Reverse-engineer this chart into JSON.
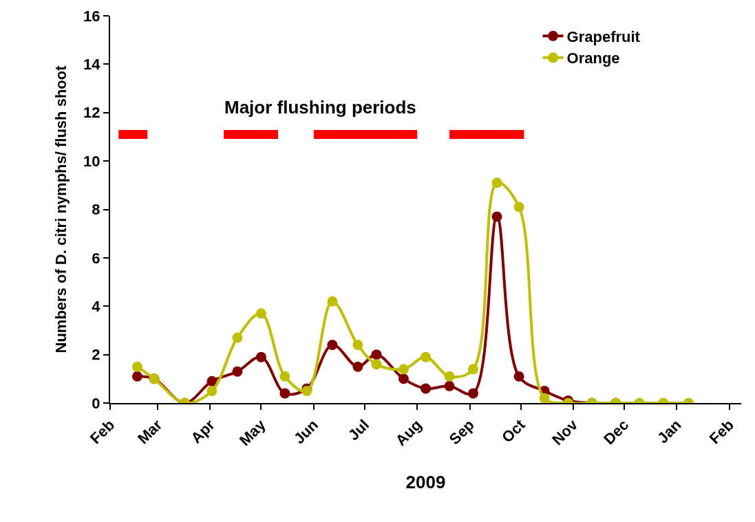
{
  "chart_data": {
    "type": "line",
    "xlabel": "2009",
    "ylabel": "Numbers of D. citri nymphs/ flush shoot",
    "series": [
      {
        "name": "Grapefruit",
        "color": "#7f0000",
        "x": [
          "2009-02-17",
          "2009-02-27",
          "2009-03-17",
          "2009-04-02",
          "2009-04-17",
          "2009-05-01",
          "2009-05-15",
          "2009-05-28",
          "2009-06-12",
          "2009-06-27",
          "2009-07-08",
          "2009-07-24",
          "2009-08-06",
          "2009-08-20",
          "2009-09-03",
          "2009-09-17",
          "2009-09-30",
          "2009-10-15",
          "2009-10-29",
          "2009-11-12",
          "2009-11-26"
        ],
        "values": [
          1.1,
          1.0,
          0,
          0.9,
          1.3,
          1.9,
          0.4,
          0.6,
          2.4,
          1.5,
          2.0,
          1.0,
          0.6,
          0.7,
          0.4,
          7.7,
          1.1,
          0.5,
          0.1,
          0,
          0
        ]
      },
      {
        "name": "Orange",
        "color": "#bfbf00",
        "x": [
          "2009-02-17",
          "2009-02-27",
          "2009-03-17",
          "2009-04-02",
          "2009-04-17",
          "2009-05-01",
          "2009-05-15",
          "2009-05-28",
          "2009-06-12",
          "2009-06-27",
          "2009-07-08",
          "2009-07-24",
          "2009-08-06",
          "2009-08-20",
          "2009-09-03",
          "2009-09-17",
          "2009-09-30",
          "2009-10-15",
          "2009-10-29",
          "2009-11-12",
          "2009-11-26",
          "2009-12-10",
          "2009-12-24",
          "2010-01-08"
        ],
        "values": [
          1.5,
          1.0,
          0,
          0.5,
          2.7,
          3.7,
          1.1,
          0.5,
          4.2,
          2.4,
          1.6,
          1.4,
          1.9,
          1.1,
          1.4,
          9.1,
          8.1,
          0.2,
          0,
          0,
          0,
          0,
          0,
          0
        ]
      },
      {
        "name": "Major flushing periods",
        "type": "line",
        "marker": "none",
        "color": "#ff0000",
        "x": [
          "2009-02-06",
          "2009-02-23",
          "2009-03-01",
          "2009-04-09",
          "2009-05-11",
          "2009-05-20",
          "2009-06-01",
          "2009-08-01",
          "2009-08-10",
          "2009-08-20",
          "2009-10-03"
        ],
        "values": [
          11.1,
          11.1,
          null,
          11.1,
          11.1,
          null,
          11.1,
          11.1,
          null,
          11.1,
          11.1
        ]
      }
    ],
    "xlim": [
      "2009-02-01",
      "2010-02-08"
    ],
    "xticks": [
      {
        "value": "2009-02-01",
        "label": "Feb"
      },
      {
        "value": "2009-03-01",
        "label": "Mar"
      },
      {
        "value": "2009-04-01",
        "label": "Apr"
      },
      {
        "value": "2009-05-01",
        "label": "May"
      },
      {
        "value": "2009-06-01",
        "label": "Jun"
      },
      {
        "value": "2009-07-01",
        "label": "Jul"
      },
      {
        "value": "2009-08-01",
        "label": "Aug"
      },
      {
        "value": "2009-09-01",
        "label": "Sep"
      },
      {
        "value": "2009-10-01",
        "label": "Oct"
      },
      {
        "value": "2009-11-01",
        "label": "Nov"
      },
      {
        "value": "2009-12-01",
        "label": "Dec"
      },
      {
        "value": "2010-01-01",
        "label": "Jan"
      },
      {
        "value": "2010-02-01",
        "label": "Feb"
      }
    ],
    "ylim": [
      0,
      16
    ],
    "yticks": [
      0,
      2,
      4,
      6,
      8,
      10,
      12,
      14,
      16
    ],
    "grid": false,
    "legend": "top right",
    "marker": "circle",
    "line_style": "solid"
  }
}
